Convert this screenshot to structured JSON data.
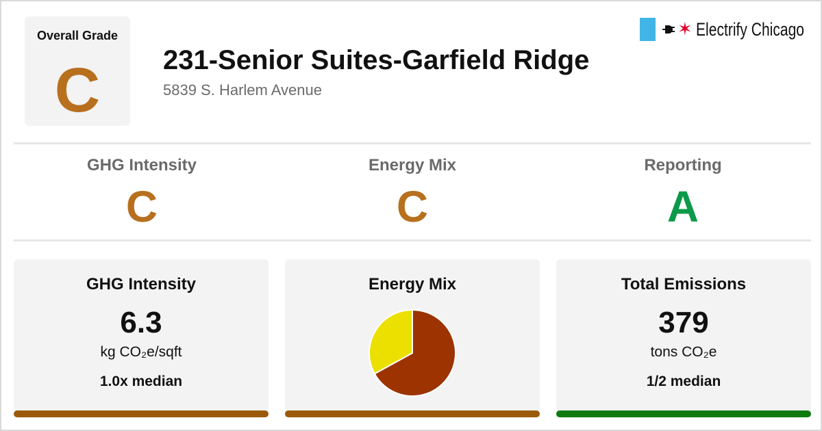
{
  "colors": {
    "grade_c": "#b8701e",
    "grade_a": "#0b9a49",
    "bar_c": "#9a5a0a",
    "bar_a": "#0f7a0f",
    "pie_electric": "#9c3300",
    "pie_gas": "#ece000"
  },
  "overall": {
    "label": "Overall Grade",
    "grade": "C"
  },
  "building": {
    "title": "231-Senior Suites-Garfield Ridge",
    "address": "5839 S. Harlem Avenue"
  },
  "brand": {
    "name": "Electrify Chicago",
    "icons": [
      "blue-square",
      "plug-icon",
      "star-icon"
    ]
  },
  "grades": [
    {
      "label": "GHG Intensity",
      "grade": "C"
    },
    {
      "label": "Energy Mix",
      "grade": "C"
    },
    {
      "label": "Reporting",
      "grade": "A"
    }
  ],
  "cards": {
    "ghg": {
      "title": "GHG Intensity",
      "value": "6.3",
      "unit": "kg CO₂e/sqft",
      "median": "1.0x median"
    },
    "mix": {
      "title": "Energy Mix"
    },
    "emissions": {
      "title": "Total Emissions",
      "value": "379",
      "unit": "tons CO₂e",
      "median": "1/2 median"
    }
  },
  "chart_data": {
    "type": "pie",
    "values": [
      0.67,
      0.33
    ],
    "colors": [
      "#9c3300",
      "#ece000"
    ]
  }
}
